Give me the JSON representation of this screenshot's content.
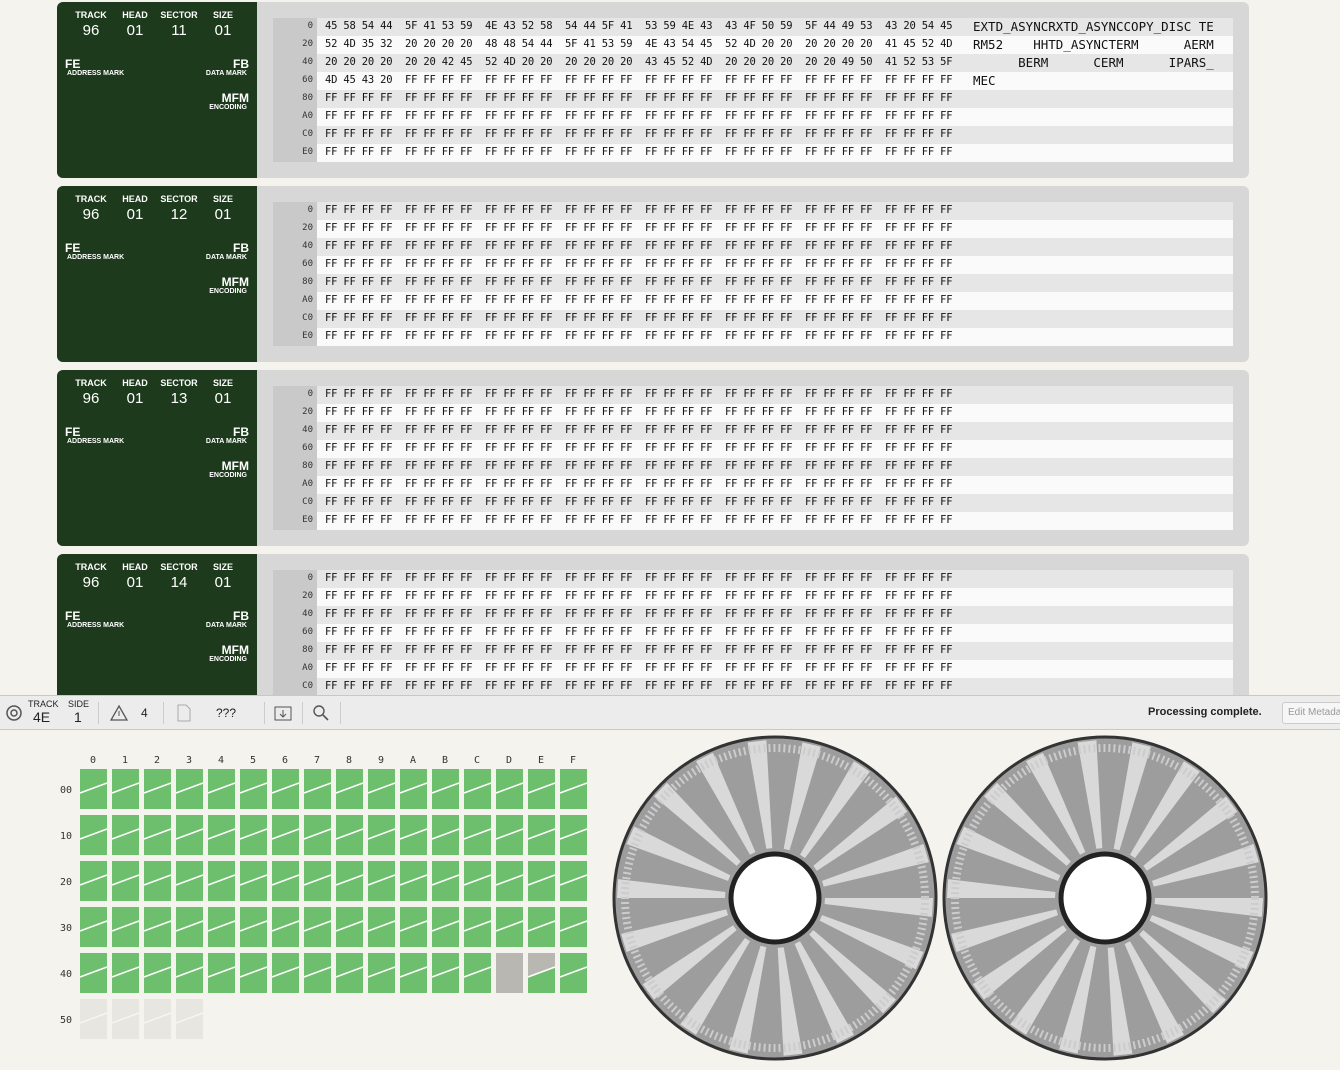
{
  "sector_labels": {
    "track": "TRACK",
    "head": "HEAD",
    "sector": "SECTOR",
    "size": "SIZE",
    "address_mark": "ADDRESS MARK",
    "data_mark": "DATA MARK",
    "encoding": "ENCODING"
  },
  "sectors": [
    {
      "track": "96",
      "head": "01",
      "sector": "11",
      "size": "01",
      "address_mark": "FE",
      "data_mark": "FB",
      "encoding": "MFM",
      "rows": [
        {
          "offset": "0",
          "bytes": [
            "45 58 54 44",
            "5F 41 53 59",
            "4E 43 52 58",
            "54 44 5F 41",
            "53 59 4E 43",
            "43 4F 50 59",
            "5F 44 49 53",
            "43 20 54 45"
          ],
          "ascii": "EXTD_ASYNCRXTD_ASYNCCOPY_DISC TE"
        },
        {
          "offset": "20",
          "bytes": [
            "52 4D 35 32",
            "20 20 20 20",
            "48 48 54 44",
            "5F 41 53 59",
            "4E 43 54 45",
            "52 4D 20 20",
            "20 20 20 20",
            "41 45 52 4D"
          ],
          "ascii": "RM52    HHTD_ASYNCTERM      AERM"
        },
        {
          "offset": "40",
          "bytes": [
            "20 20 20 20",
            "20 20 42 45",
            "52 4D 20 20",
            "20 20 20 20",
            "43 45 52 4D",
            "20 20 20 20",
            "20 20 49 50",
            "41 52 53 5F"
          ],
          "ascii": "      BERM      CERM      IPARS_"
        },
        {
          "offset": "60",
          "bytes": [
            "4D 45 43 20",
            "FF FF FF FF",
            "FF FF FF FF",
            "FF FF FF FF",
            "FF FF FF FF",
            "FF FF FF FF",
            "FF FF FF FF",
            "FF FF FF FF"
          ],
          "ascii": "MEC"
        },
        {
          "offset": "80",
          "bytes": [
            "FF FF FF FF",
            "FF FF FF FF",
            "FF FF FF FF",
            "FF FF FF FF",
            "FF FF FF FF",
            "FF FF FF FF",
            "FF FF FF FF",
            "FF FF FF FF"
          ]
        },
        {
          "offset": "A0",
          "bytes": [
            "FF FF FF FF",
            "FF FF FF FF",
            "FF FF FF FF",
            "FF FF FF FF",
            "FF FF FF FF",
            "FF FF FF FF",
            "FF FF FF FF",
            "FF FF FF FF"
          ]
        },
        {
          "offset": "C0",
          "bytes": [
            "FF FF FF FF",
            "FF FF FF FF",
            "FF FF FF FF",
            "FF FF FF FF",
            "FF FF FF FF",
            "FF FF FF FF",
            "FF FF FF FF",
            "FF FF FF FF"
          ]
        },
        {
          "offset": "E0",
          "bytes": [
            "FF FF FF FF",
            "FF FF FF FF",
            "FF FF FF FF",
            "FF FF FF FF",
            "FF FF FF FF",
            "FF FF FF FF",
            "FF FF FF FF",
            "FF FF FF FF"
          ]
        }
      ]
    },
    {
      "track": "96",
      "head": "01",
      "sector": "12",
      "size": "01",
      "address_mark": "FE",
      "data_mark": "FB",
      "encoding": "MFM",
      "rows": [
        {
          "offset": "0",
          "bytes": [
            "FF FF FF FF",
            "FF FF FF FF",
            "FF FF FF FF",
            "FF FF FF FF",
            "FF FF FF FF",
            "FF FF FF FF",
            "FF FF FF FF",
            "FF FF FF FF"
          ]
        },
        {
          "offset": "20",
          "bytes": [
            "FF FF FF FF",
            "FF FF FF FF",
            "FF FF FF FF",
            "FF FF FF FF",
            "FF FF FF FF",
            "FF FF FF FF",
            "FF FF FF FF",
            "FF FF FF FF"
          ]
        },
        {
          "offset": "40",
          "bytes": [
            "FF FF FF FF",
            "FF FF FF FF",
            "FF FF FF FF",
            "FF FF FF FF",
            "FF FF FF FF",
            "FF FF FF FF",
            "FF FF FF FF",
            "FF FF FF FF"
          ]
        },
        {
          "offset": "60",
          "bytes": [
            "FF FF FF FF",
            "FF FF FF FF",
            "FF FF FF FF",
            "FF FF FF FF",
            "FF FF FF FF",
            "FF FF FF FF",
            "FF FF FF FF",
            "FF FF FF FF"
          ]
        },
        {
          "offset": "80",
          "bytes": [
            "FF FF FF FF",
            "FF FF FF FF",
            "FF FF FF FF",
            "FF FF FF FF",
            "FF FF FF FF",
            "FF FF FF FF",
            "FF FF FF FF",
            "FF FF FF FF"
          ]
        },
        {
          "offset": "A0",
          "bytes": [
            "FF FF FF FF",
            "FF FF FF FF",
            "FF FF FF FF",
            "FF FF FF FF",
            "FF FF FF FF",
            "FF FF FF FF",
            "FF FF FF FF",
            "FF FF FF FF"
          ]
        },
        {
          "offset": "C0",
          "bytes": [
            "FF FF FF FF",
            "FF FF FF FF",
            "FF FF FF FF",
            "FF FF FF FF",
            "FF FF FF FF",
            "FF FF FF FF",
            "FF FF FF FF",
            "FF FF FF FF"
          ]
        },
        {
          "offset": "E0",
          "bytes": [
            "FF FF FF FF",
            "FF FF FF FF",
            "FF FF FF FF",
            "FF FF FF FF",
            "FF FF FF FF",
            "FF FF FF FF",
            "FF FF FF FF",
            "FF FF FF FF"
          ]
        }
      ]
    },
    {
      "track": "96",
      "head": "01",
      "sector": "13",
      "size": "01",
      "address_mark": "FE",
      "data_mark": "FB",
      "encoding": "MFM",
      "rows": [
        {
          "offset": "0",
          "bytes": [
            "FF FF FF FF",
            "FF FF FF FF",
            "FF FF FF FF",
            "FF FF FF FF",
            "FF FF FF FF",
            "FF FF FF FF",
            "FF FF FF FF",
            "FF FF FF FF"
          ]
        },
        {
          "offset": "20",
          "bytes": [
            "FF FF FF FF",
            "FF FF FF FF",
            "FF FF FF FF",
            "FF FF FF FF",
            "FF FF FF FF",
            "FF FF FF FF",
            "FF FF FF FF",
            "FF FF FF FF"
          ]
        },
        {
          "offset": "40",
          "bytes": [
            "FF FF FF FF",
            "FF FF FF FF",
            "FF FF FF FF",
            "FF FF FF FF",
            "FF FF FF FF",
            "FF FF FF FF",
            "FF FF FF FF",
            "FF FF FF FF"
          ]
        },
        {
          "offset": "60",
          "bytes": [
            "FF FF FF FF",
            "FF FF FF FF",
            "FF FF FF FF",
            "FF FF FF FF",
            "FF FF FF FF",
            "FF FF FF FF",
            "FF FF FF FF",
            "FF FF FF FF"
          ]
        },
        {
          "offset": "80",
          "bytes": [
            "FF FF FF FF",
            "FF FF FF FF",
            "FF FF FF FF",
            "FF FF FF FF",
            "FF FF FF FF",
            "FF FF FF FF",
            "FF FF FF FF",
            "FF FF FF FF"
          ]
        },
        {
          "offset": "A0",
          "bytes": [
            "FF FF FF FF",
            "FF FF FF FF",
            "FF FF FF FF",
            "FF FF FF FF",
            "FF FF FF FF",
            "FF FF FF FF",
            "FF FF FF FF",
            "FF FF FF FF"
          ]
        },
        {
          "offset": "C0",
          "bytes": [
            "FF FF FF FF",
            "FF FF FF FF",
            "FF FF FF FF",
            "FF FF FF FF",
            "FF FF FF FF",
            "FF FF FF FF",
            "FF FF FF FF",
            "FF FF FF FF"
          ]
        },
        {
          "offset": "E0",
          "bytes": [
            "FF FF FF FF",
            "FF FF FF FF",
            "FF FF FF FF",
            "FF FF FF FF",
            "FF FF FF FF",
            "FF FF FF FF",
            "FF FF FF FF",
            "FF FF FF FF"
          ]
        }
      ]
    },
    {
      "track": "96",
      "head": "01",
      "sector": "14",
      "size": "01",
      "address_mark": "FE",
      "data_mark": "FB",
      "encoding": "MFM",
      "rows": [
        {
          "offset": "0",
          "bytes": [
            "FF FF FF FF",
            "FF FF FF FF",
            "FF FF FF FF",
            "FF FF FF FF",
            "FF FF FF FF",
            "FF FF FF FF",
            "FF FF FF FF",
            "FF FF FF FF"
          ]
        },
        {
          "offset": "20",
          "bytes": [
            "FF FF FF FF",
            "FF FF FF FF",
            "FF FF FF FF",
            "FF FF FF FF",
            "FF FF FF FF",
            "FF FF FF FF",
            "FF FF FF FF",
            "FF FF FF FF"
          ]
        },
        {
          "offset": "40",
          "bytes": [
            "FF FF FF FF",
            "FF FF FF FF",
            "FF FF FF FF",
            "FF FF FF FF",
            "FF FF FF FF",
            "FF FF FF FF",
            "FF FF FF FF",
            "FF FF FF FF"
          ]
        },
        {
          "offset": "60",
          "bytes": [
            "FF FF FF FF",
            "FF FF FF FF",
            "FF FF FF FF",
            "FF FF FF FF",
            "FF FF FF FF",
            "FF FF FF FF",
            "FF FF FF FF",
            "FF FF FF FF"
          ]
        },
        {
          "offset": "80",
          "bytes": [
            "FF FF FF FF",
            "FF FF FF FF",
            "FF FF FF FF",
            "FF FF FF FF",
            "FF FF FF FF",
            "FF FF FF FF",
            "FF FF FF FF",
            "FF FF FF FF"
          ]
        },
        {
          "offset": "A0",
          "bytes": [
            "FF FF FF FF",
            "FF FF FF FF",
            "FF FF FF FF",
            "FF FF FF FF",
            "FF FF FF FF",
            "FF FF FF FF",
            "FF FF FF FF",
            "FF FF FF FF"
          ]
        },
        {
          "offset": "C0",
          "bytes": [
            "FF FF FF FF",
            "FF FF FF FF",
            "FF FF FF FF",
            "FF FF FF FF",
            "FF FF FF FF",
            "FF FF FF FF",
            "FF FF FF FF",
            "FF FF FF FF"
          ]
        }
      ]
    }
  ],
  "toolbar": {
    "track_label": "TRACK",
    "track": "4E",
    "side_label": "SIDE",
    "side": "1",
    "warnings": "4",
    "file": "???",
    "status": "Processing complete.",
    "button": "Edit Metadata"
  },
  "track_map": {
    "columns": [
      "0",
      "1",
      "2",
      "3",
      "4",
      "5",
      "6",
      "7",
      "8",
      "9",
      "A",
      "B",
      "C",
      "D",
      "E",
      "F"
    ],
    "rows": [
      "00",
      "10",
      "20",
      "30",
      "40",
      "50"
    ]
  }
}
